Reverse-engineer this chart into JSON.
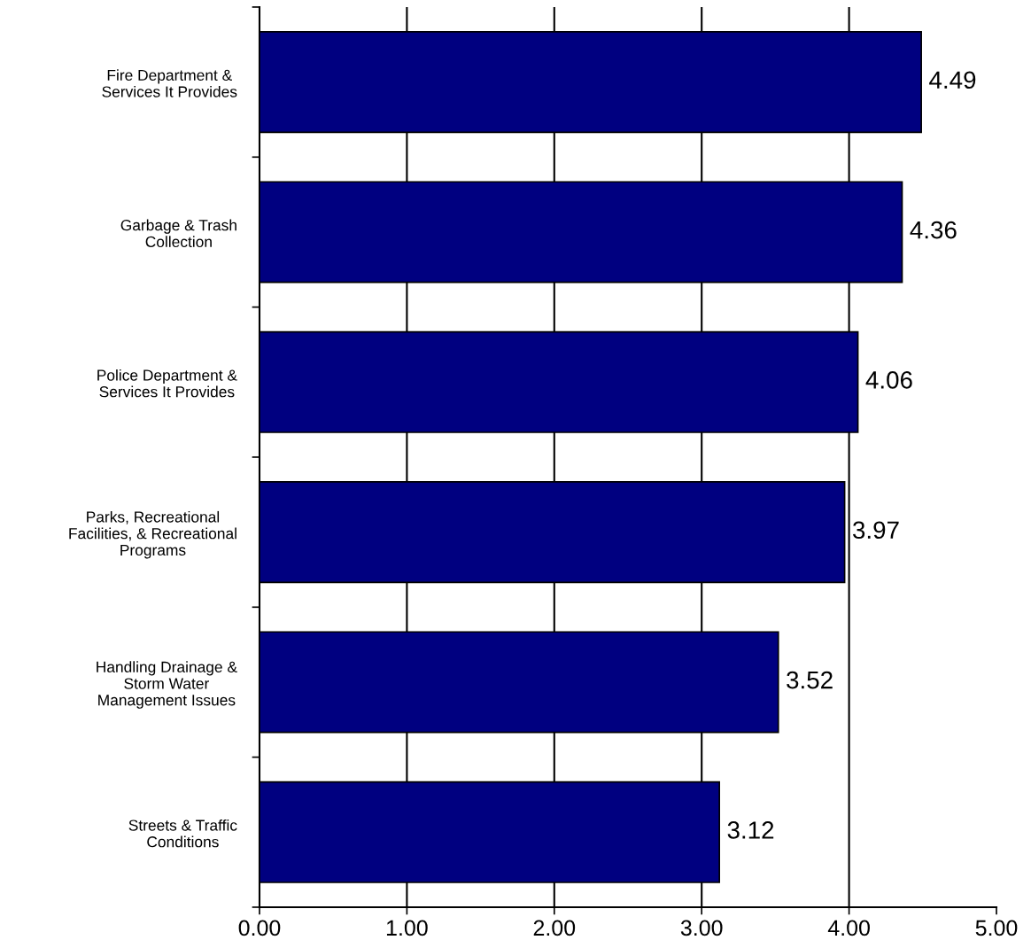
{
  "chart_data": {
    "type": "bar",
    "orientation": "horizontal",
    "categories": [
      "Fire Department &\nServices It Provides",
      "Garbage & Trash\nCollection",
      "Police Department &\nServices It Provides",
      "Parks, Recreational\nFacilities, & Recreational\nPrograms",
      "Handling Drainage &\nStorm Water\nManagement Issues",
      "Streets & Traffic\nConditions"
    ],
    "values": [
      4.49,
      4.36,
      4.06,
      3.97,
      3.52,
      3.12
    ],
    "color": "#000080",
    "xlim": [
      0,
      5
    ],
    "xticks": [
      {
        "value": 0,
        "label": "0.00"
      },
      {
        "value": 1,
        "label": "1.00"
      },
      {
        "value": 2,
        "label": "2.00"
      },
      {
        "value": 3,
        "label": "3.00"
      },
      {
        "value": 4,
        "label": "4.00"
      },
      {
        "value": 5,
        "label": "5.00"
      }
    ],
    "grid": "x",
    "data_labels": true
  }
}
